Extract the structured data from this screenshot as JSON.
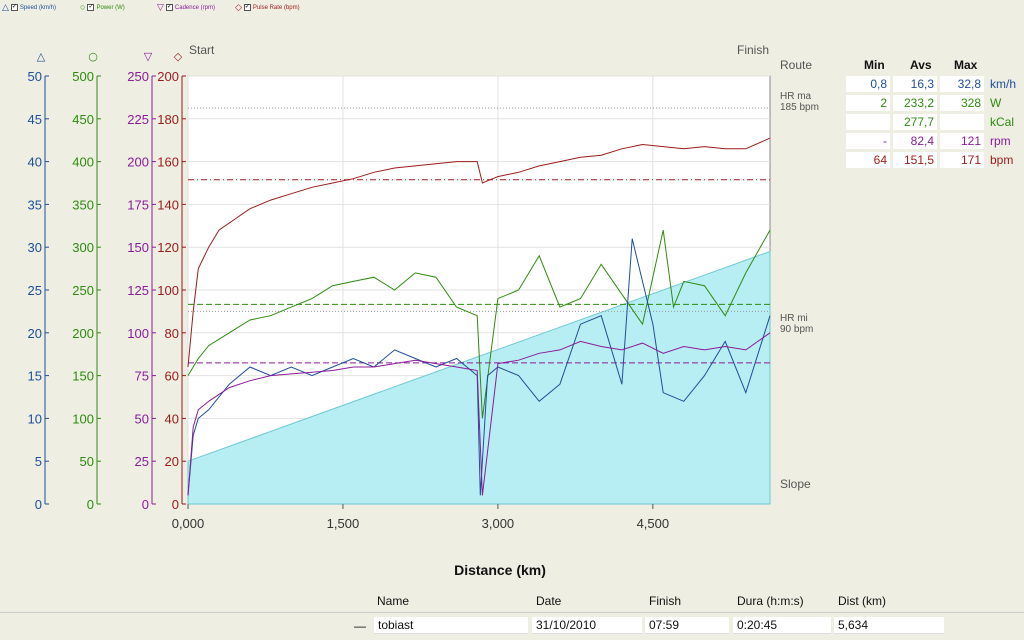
{
  "legend": [
    {
      "marker": "△",
      "label": "Speed (km/h)",
      "color": "#1f4e9a"
    },
    {
      "marker": "○",
      "label": "Power (W)",
      "color": "#2e8b10"
    },
    {
      "marker": "▽",
      "label": "Cadence (rpm)",
      "color": "#8b1c9a"
    },
    {
      "marker": "◇",
      "label": "Pulse Rate (bpm)",
      "color": "#9b1b1b"
    }
  ],
  "chart_labels": {
    "start": "Start",
    "finish": "Finish",
    "route": "Route",
    "slope": "Slope",
    "hr_max_line1": "HR ma",
    "hr_max_line2": "185 bpm",
    "hr_min_line1": "HR mi",
    "hr_min_line2": "90 bpm",
    "x_title": "Distance (km)"
  },
  "chart_data": {
    "type": "line",
    "x_ticks": [
      "0,000",
      "1,500",
      "3,000",
      "4,500"
    ],
    "x_tick_values": [
      0,
      1500,
      3000,
      4500
    ],
    "xlim": [
      0,
      5634
    ],
    "axes": [
      {
        "name": "speed",
        "marker": "△",
        "color": "#1f4e9a",
        "ticks": [
          0,
          5,
          10,
          15,
          20,
          25,
          30,
          35,
          40,
          45,
          50
        ],
        "lim": [
          0,
          50
        ]
      },
      {
        "name": "power",
        "marker": "○",
        "color": "#2e8b10",
        "ticks": [
          0,
          50,
          100,
          150,
          200,
          250,
          300,
          350,
          400,
          450,
          500
        ],
        "lim": [
          0,
          500
        ]
      },
      {
        "name": "cadence",
        "marker": "▽",
        "color": "#8b1c9a",
        "ticks": [
          0,
          25,
          50,
          75,
          100,
          125,
          150,
          175,
          200,
          225,
          250
        ],
        "lim": [
          0,
          250
        ]
      },
      {
        "name": "pulse",
        "marker": "◇",
        "color": "#9b1b1b",
        "ticks": [
          0,
          20,
          40,
          60,
          80,
          100,
          120,
          140,
          160,
          180,
          200
        ],
        "lim": [
          0,
          200
        ]
      }
    ],
    "reference_lines": {
      "hr_max": 185,
      "hr_min": 90,
      "hr_avg": 151.5,
      "power_avg": 233.2,
      "cadence_avg": 82.4
    },
    "series": [
      {
        "name": "Pulse Rate (bpm)",
        "axis": "pulse",
        "x": [
          0,
          50,
          100,
          200,
          300,
          450,
          600,
          800,
          1000,
          1200,
          1400,
          1600,
          1800,
          2000,
          2200,
          2400,
          2600,
          2800,
          2850,
          2950,
          3000,
          3200,
          3400,
          3600,
          3800,
          4000,
          4200,
          4400,
          4600,
          4800,
          5000,
          5200,
          5400,
          5634
        ],
        "y": [
          64,
          90,
          110,
          120,
          128,
          133,
          138,
          142,
          145,
          148,
          150,
          152,
          155,
          157,
          158,
          159,
          160,
          160,
          150,
          152,
          153,
          155,
          158,
          160,
          162,
          163,
          166,
          168,
          167,
          166,
          167,
          166,
          166,
          171
        ]
      },
      {
        "name": "Power (W)",
        "axis": "power",
        "x": [
          0,
          100,
          200,
          400,
          600,
          800,
          1000,
          1200,
          1400,
          1600,
          1800,
          2000,
          2200,
          2400,
          2600,
          2800,
          2850,
          3000,
          3200,
          3400,
          3600,
          3800,
          4000,
          4200,
          4400,
          4600,
          4700,
          4800,
          5000,
          5200,
          5400,
          5634
        ],
        "y": [
          150,
          170,
          185,
          200,
          215,
          220,
          230,
          240,
          255,
          260,
          265,
          250,
          270,
          265,
          230,
          220,
          100,
          240,
          250,
          290,
          230,
          240,
          280,
          245,
          210,
          320,
          230,
          260,
          255,
          220,
          270,
          320
        ]
      },
      {
        "name": "Speed (km/h)",
        "axis": "speed",
        "x": [
          0,
          50,
          100,
          200,
          400,
          600,
          800,
          1000,
          1200,
          1400,
          1600,
          1800,
          2000,
          2200,
          2400,
          2600,
          2800,
          2830,
          2900,
          3000,
          3200,
          3400,
          3600,
          3800,
          4000,
          4200,
          4300,
          4400,
          4500,
          4600,
          4800,
          5000,
          5200,
          5400,
          5634
        ],
        "y": [
          1,
          8,
          10,
          11,
          14,
          16,
          15,
          16,
          15,
          16,
          17,
          16,
          18,
          17,
          16,
          17,
          15,
          1,
          15,
          16,
          15,
          12,
          14,
          21,
          22,
          14,
          31,
          26,
          21,
          13,
          12,
          15,
          19,
          13,
          22
        ]
      },
      {
        "name": "Cadence (rpm)",
        "axis": "cadence",
        "x": [
          0,
          50,
          100,
          200,
          400,
          600,
          800,
          1000,
          1200,
          1400,
          1600,
          1800,
          2000,
          2200,
          2400,
          2600,
          2800,
          2850,
          3000,
          3200,
          3400,
          3600,
          3800,
          4000,
          4200,
          4400,
          4600,
          4800,
          5000,
          5200,
          5400,
          5634
        ],
        "y": [
          5,
          45,
          55,
          60,
          68,
          72,
          75,
          76,
          77,
          78,
          80,
          80,
          82,
          84,
          82,
          80,
          78,
          5,
          82,
          84,
          88,
          90,
          95,
          92,
          90,
          94,
          88,
          92,
          90,
          92,
          90,
          100
        ]
      },
      {
        "name": "Slope",
        "axis": "pulse",
        "type": "area",
        "x": [
          0,
          5634
        ],
        "y": [
          20,
          118
        ]
      }
    ]
  },
  "stats": {
    "headers": [
      "Min",
      "Avs",
      "Max"
    ],
    "rows": [
      {
        "min": "0,8",
        "avg": "16,3",
        "max": "32,8",
        "unit": "km/h",
        "color": "#1f4e9a"
      },
      {
        "min": "2",
        "avg": "233,2",
        "max": "328",
        "unit": "W",
        "color": "#2e8b10"
      },
      {
        "min": "",
        "avg": "277,7",
        "max": "",
        "unit": "kCal",
        "color": "#2e8b10"
      },
      {
        "min": "-",
        "avg": "82,4",
        "max": "121",
        "unit": "rpm",
        "color": "#8b1c9a"
      },
      {
        "min": "64",
        "avg": "151,5",
        "max": "171",
        "unit": "bpm",
        "color": "#9b1b1b"
      }
    ]
  },
  "route_table": {
    "headers": {
      "name": "Name",
      "date": "Date",
      "finish": "Finish",
      "duration": "Dura (h:m:s)",
      "distance": "Dist (km)"
    },
    "row": {
      "marker": "—",
      "name": "tobiast",
      "date": "31/10/2010",
      "finish": "07:59",
      "duration": "0:20:45",
      "distance": "5,634"
    }
  }
}
